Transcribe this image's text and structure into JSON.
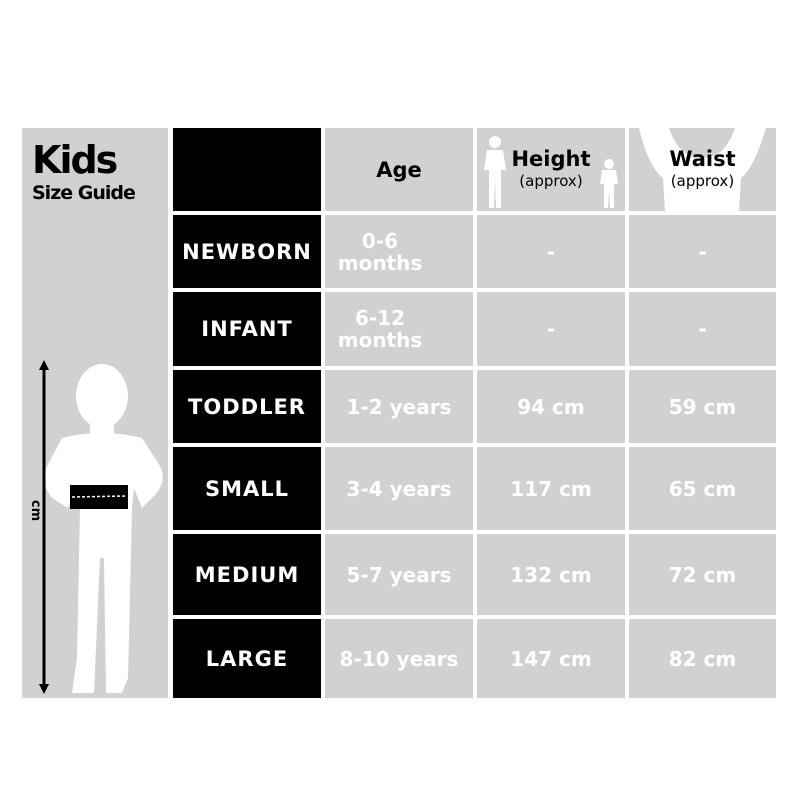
{
  "title": {
    "main": "Kids",
    "sub": "Size Guide"
  },
  "figure": {
    "axis_label": "cm"
  },
  "headers": {
    "age": "Age",
    "height": "Height",
    "height_sub": "(approx)",
    "waist": "Waist",
    "waist_sub": "(approx)"
  },
  "rows": [
    {
      "size": "NEWBORN",
      "age": "0-6 months",
      "height": "-",
      "waist": "-"
    },
    {
      "size": "INFANT",
      "age": "6-12 months",
      "height": "-",
      "waist": "-"
    },
    {
      "size": "TODDLER",
      "age": "1-2 years",
      "height": "94 cm",
      "waist": "59 cm"
    },
    {
      "size": "SMALL",
      "age": "3-4 years",
      "height": "117 cm",
      "waist": "65 cm"
    },
    {
      "size": "MEDIUM",
      "age": "5-7 years",
      "height": "132 cm",
      "waist": "72 cm"
    },
    {
      "size": "LARGE",
      "age": "8-10 years",
      "height": "147 cm",
      "waist": "82 cm"
    }
  ],
  "colors": {
    "panel": "#d1d1d1",
    "label_bg": "#000000",
    "value_text": "#ffffff"
  }
}
